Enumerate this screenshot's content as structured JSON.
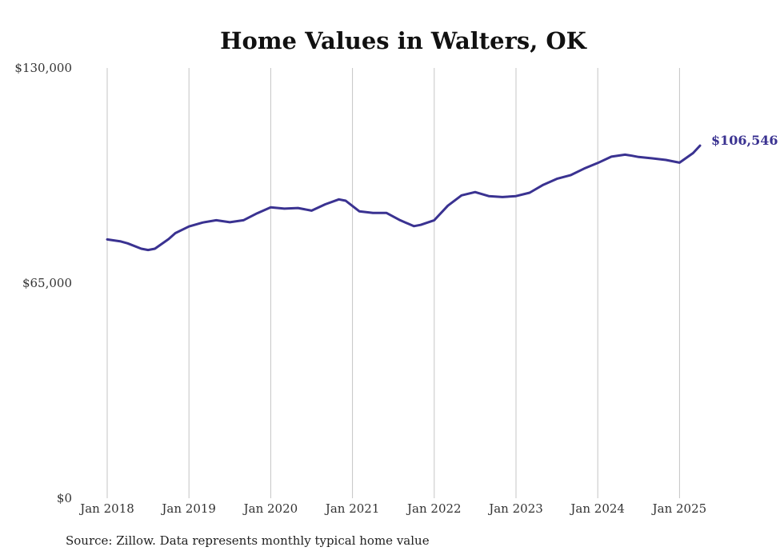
{
  "chart_data": {
    "type": "line",
    "title": "Home Values in Walters, OK",
    "xlabel": "",
    "ylabel": "",
    "ylim": [
      0,
      130000
    ],
    "y_ticks": [
      "$0",
      "$65,000",
      "$130,000"
    ],
    "y_tick_values": [
      0,
      65000,
      130000
    ],
    "x_ticks": [
      "Jan 2018",
      "Jan 2019",
      "Jan 2020",
      "Jan 2021",
      "Jan 2022",
      "Jan 2023",
      "Jan 2024",
      "Jan 2025"
    ],
    "x_tick_dates": [
      "2018-01",
      "2019-01",
      "2020-01",
      "2021-01",
      "2022-01",
      "2023-01",
      "2024-01",
      "2025-01"
    ],
    "grid": "vertical",
    "legend": "none",
    "color": "#3a3291",
    "end_label": "$106,546",
    "series": [
      {
        "dates": [
          "2018-01",
          "2018-03",
          "2018-04",
          "2018-06",
          "2018-07",
          "2018-08",
          "2018-10",
          "2018-11",
          "2019-01",
          "2019-03",
          "2019-05",
          "2019-07",
          "2019-09",
          "2019-11",
          "2020-01",
          "2020-03",
          "2020-05",
          "2020-07",
          "2020-09",
          "2020-11",
          "2020-12",
          "2021-02",
          "2021-04",
          "2021-06",
          "2021-08",
          "2021-10",
          "2021-11",
          "2022-01",
          "2022-03",
          "2022-05",
          "2022-07",
          "2022-09",
          "2022-11",
          "2023-01",
          "2023-03",
          "2023-05",
          "2023-07",
          "2023-09",
          "2023-11",
          "2024-01",
          "2024-03",
          "2024-05",
          "2024-06",
          "2024-07",
          "2024-09",
          "2024-11",
          "2025-01",
          "2025-03",
          "2025-04"
        ],
        "values": [
          78200,
          77600,
          77000,
          75400,
          75000,
          75400,
          78300,
          80100,
          82100,
          83300,
          84000,
          83400,
          84000,
          86100,
          87900,
          87500,
          87700,
          86900,
          88800,
          90300,
          89900,
          86700,
          86200,
          86200,
          84000,
          82200,
          82600,
          84000,
          88400,
          91500,
          92500,
          91300,
          91000,
          91300,
          92300,
          94700,
          96500,
          97600,
          99600,
          101300,
          103200,
          103800,
          103500,
          103100,
          102700,
          102200,
          101400,
          104300,
          106546
        ]
      }
    ],
    "source": "Source: Zillow. Data represents monthly typical home value"
  }
}
